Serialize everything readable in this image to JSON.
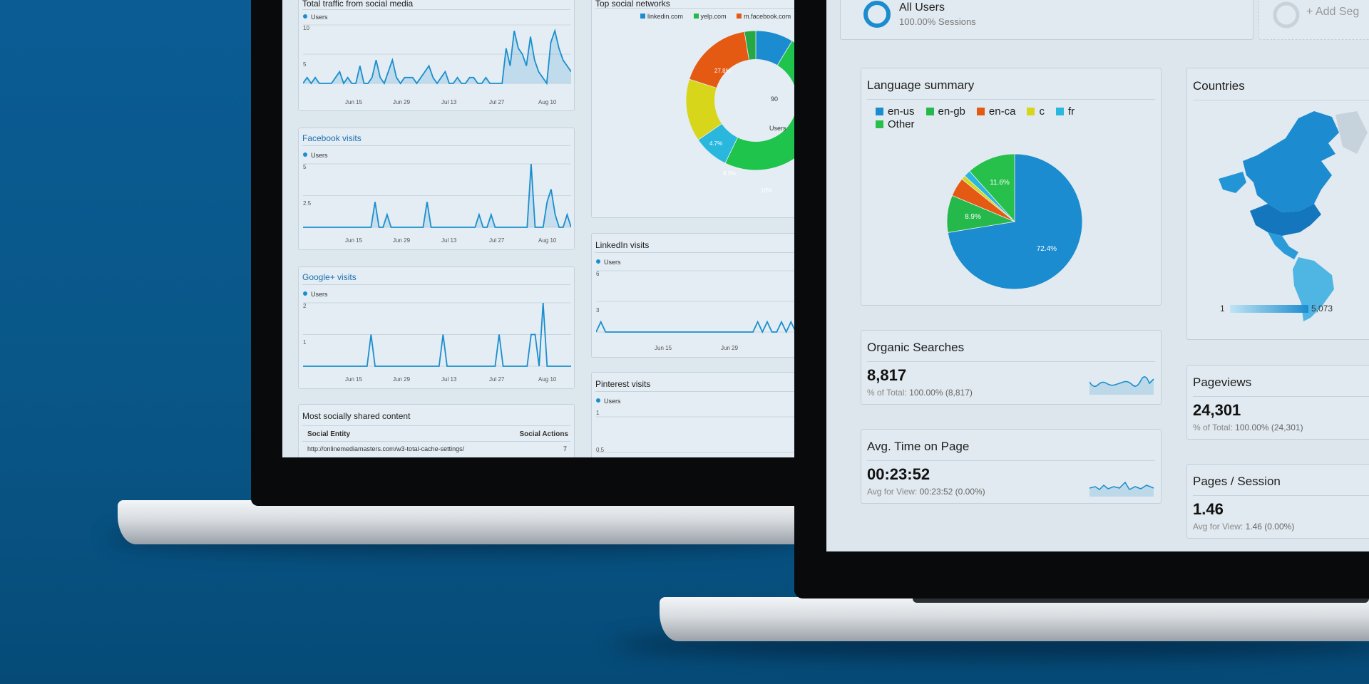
{
  "colors": {
    "background": "#0b5c95",
    "accent": "#1a8ecd",
    "en_us": "#1b8ccf",
    "en_gb": "#25b84a",
    "en_ca": "#e45a12",
    "c": "#d8d61a",
    "fr": "#29b7de",
    "other": "#26c04b"
  },
  "left_screen": {
    "traffic_card": {
      "title": "Total traffic from social media",
      "legend": "Users",
      "y_ticks": [
        "10",
        "5"
      ],
      "x_ticks": [
        "Jun 15",
        "Jun 29",
        "Jul 13",
        "Jul 27",
        "Aug 10"
      ]
    },
    "facebook_card": {
      "title": "Facebook visits",
      "legend": "Users",
      "y_ticks": [
        "5",
        "2.5"
      ],
      "x_ticks": [
        "Jun 15",
        "Jun 29",
        "Jul 13",
        "Jul 27",
        "Aug 10"
      ]
    },
    "googleplus_card": {
      "title": "Google+ visits",
      "legend": "Users",
      "y_ticks": [
        "2",
        "1"
      ],
      "x_ticks": [
        "Jun 15",
        "Jun 29",
        "Jul 13",
        "Jul 27",
        "Aug 10"
      ]
    },
    "shared_card": {
      "title": "Most socially shared content",
      "col_entity": "Social Entity",
      "col_actions": "Social Actions",
      "row_url": "http://onlinemediamasters.com/w3-total-cache-settings/",
      "row_actions": "7"
    },
    "networks_card": {
      "title": "Top social networks",
      "legend": [
        "linkedin.com",
        "yelp.com",
        "m.facebook.com"
      ],
      "donut_center_value": "90",
      "donut_center_label": "Users",
      "labels": {
        "green": "27.8%",
        "cyan": "4.7%",
        "yellow": "8.3%",
        "orange": "10%"
      }
    },
    "linkedin_card": {
      "title": "LinkedIn visits",
      "legend": "Users",
      "y_ticks": [
        "6",
        "3"
      ],
      "x_ticks": [
        "Jun 15",
        "Jun 29"
      ]
    },
    "pinterest_card": {
      "title": "Pinterest visits",
      "legend": "Users",
      "y_ticks": [
        "1",
        "0.5"
      ]
    }
  },
  "right_screen": {
    "segment": {
      "name": "All Users",
      "sub": "100.00% Sessions",
      "add": "+ Add Seg"
    },
    "language": {
      "title": "Language summary",
      "legend": [
        {
          "label": "en-us",
          "color": "#1b8ccf"
        },
        {
          "label": "en-gb",
          "color": "#25b84a"
        },
        {
          "label": "en-ca",
          "color": "#e45a12"
        },
        {
          "label": "c",
          "color": "#d8d61a"
        },
        {
          "label": "fr",
          "color": "#29b7de"
        },
        {
          "label": "Other",
          "color": "#26c04b"
        }
      ]
    },
    "countries": {
      "title": "Countries",
      "scale_min": "1",
      "scale_max": "5,073"
    },
    "organic": {
      "title": "Organic Searches",
      "value": "8,817",
      "sub_label": "% of Total:",
      "sub_value": "100.00% (8,817)"
    },
    "avgtime": {
      "title": "Avg. Time on Page",
      "value": "00:23:52",
      "sub_label": "Avg for View:",
      "sub_value": "00:23:52 (0.00%)"
    },
    "pageviews": {
      "title": "Pageviews",
      "value": "24,301",
      "sub_label": "% of Total:",
      "sub_value": "100.00% (24,301)"
    },
    "pps": {
      "title": "Pages / Session",
      "value": "1.46",
      "sub_label": "Avg for View:",
      "sub_value": "1.46 (0.00%)"
    }
  },
  "chart_data": [
    {
      "type": "pie",
      "title": "Language summary",
      "categories": [
        "en-us",
        "en-gb",
        "en-ca",
        "c",
        "fr",
        "Other"
      ],
      "values": [
        72.4,
        8.9,
        4.5,
        1.0,
        1.6,
        11.6
      ],
      "labels_shown": [
        "72.4%",
        "8.9%",
        "11.6%"
      ]
    },
    {
      "type": "pie",
      "title": "Top social networks",
      "categories": [
        "linkedin.com",
        "green",
        "cyan",
        "yellow",
        "orange",
        "other"
      ],
      "values": [
        5,
        27.8,
        4.7,
        8.3,
        10,
        44.2
      ],
      "labels_shown": [
        "27.8%",
        "4.7%",
        "8.3%",
        "10%"
      ]
    },
    {
      "type": "line",
      "title": "Total traffic from social media",
      "series": [
        {
          "name": "Users",
          "values": [
            0,
            1,
            0,
            1,
            0,
            0,
            0,
            0,
            1,
            2,
            0,
            1,
            0,
            0,
            3,
            0,
            0,
            1,
            4,
            1,
            0,
            2,
            4,
            1,
            0,
            1,
            1,
            1,
            0,
            1,
            2,
            3,
            1,
            0,
            1,
            2,
            0,
            0,
            1,
            0,
            0,
            1,
            1,
            0,
            0,
            1,
            0,
            0,
            0,
            0,
            6,
            3,
            9,
            6,
            5,
            3,
            8,
            4,
            2,
            1,
            0,
            7,
            9,
            6,
            4,
            3,
            2
          ]
        }
      ],
      "ylim": [
        0,
        10
      ]
    },
    {
      "type": "line",
      "title": "Facebook visits",
      "series": [
        {
          "name": "Users",
          "values": [
            0,
            0,
            0,
            0,
            0,
            0,
            0,
            0,
            0,
            0,
            0,
            0,
            0,
            0,
            0,
            0,
            0,
            0,
            2,
            0,
            0,
            1,
            0,
            0,
            0,
            0,
            0,
            0,
            0,
            0,
            0,
            2,
            0,
            0,
            0,
            0,
            0,
            0,
            0,
            0,
            0,
            0,
            0,
            0,
            1,
            0,
            0,
            1,
            0,
            0,
            0,
            0,
            0,
            0,
            0,
            0,
            0,
            5,
            0,
            0,
            0,
            2,
            3,
            1,
            0,
            0,
            1,
            0
          ]
        }
      ],
      "ylim": [
        0,
        5
      ]
    },
    {
      "type": "line",
      "title": "Google+ visits",
      "series": [
        {
          "name": "Users",
          "values": [
            0,
            0,
            0,
            0,
            0,
            0,
            0,
            0,
            0,
            0,
            0,
            0,
            0,
            0,
            0,
            0,
            0,
            1,
            0,
            0,
            0,
            0,
            0,
            0,
            0,
            0,
            0,
            0,
            0,
            0,
            0,
            0,
            0,
            0,
            0,
            1,
            0,
            0,
            0,
            0,
            0,
            0,
            0,
            0,
            0,
            0,
            0,
            0,
            0,
            1,
            0,
            0,
            0,
            0,
            0,
            0,
            0,
            1,
            1,
            0,
            2,
            0,
            0,
            0,
            0,
            0,
            0,
            0
          ]
        }
      ],
      "ylim": [
        0,
        2
      ]
    },
    {
      "type": "line",
      "title": "LinkedIn visits",
      "series": [
        {
          "name": "Users",
          "values": [
            0,
            1,
            0,
            0,
            0,
            0,
            0,
            0,
            0,
            0,
            0,
            0,
            0,
            0,
            0,
            0,
            0,
            0,
            0,
            0,
            0,
            0,
            0,
            0,
            0,
            0,
            0,
            0,
            0,
            0,
            0,
            0,
            0,
            0,
            1,
            0,
            1,
            0,
            0,
            1,
            0,
            1,
            0,
            0,
            1,
            0
          ]
        }
      ],
      "ylim": [
        0,
        6
      ]
    }
  ]
}
